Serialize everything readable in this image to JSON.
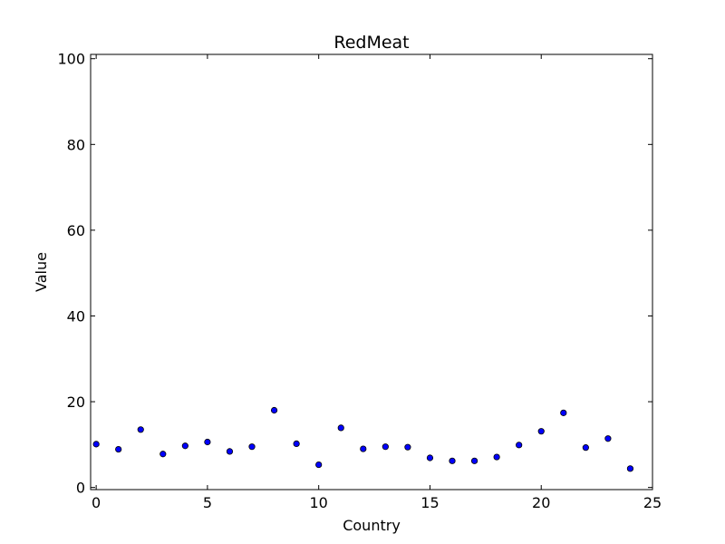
{
  "chart_data": {
    "type": "scatter",
    "title": "RedMeat",
    "xlabel": "Country",
    "ylabel": "Value",
    "xlim": [
      -0.25,
      25
    ],
    "ylim": [
      -0.5,
      101
    ],
    "xticks": [
      "0",
      "5",
      "10",
      "15",
      "20",
      "25"
    ],
    "yticks": [
      "0",
      "20",
      "40",
      "60",
      "80",
      "100"
    ],
    "grid": false,
    "marker_color": "#0000ff",
    "marker_edge_color": "#000000",
    "series": [
      {
        "x": [
          0,
          1,
          2,
          3,
          4,
          5,
          6,
          7,
          8,
          9,
          10,
          11,
          12,
          13,
          14,
          15,
          16,
          17,
          18,
          19,
          20,
          21,
          22,
          23,
          24
        ],
        "y": [
          10.1,
          8.9,
          13.5,
          7.8,
          9.7,
          10.6,
          8.4,
          9.5,
          18.0,
          10.2,
          5.3,
          13.9,
          9.0,
          9.5,
          9.4,
          6.9,
          6.2,
          6.2,
          7.1,
          9.9,
          13.1,
          17.4,
          9.3,
          11.4,
          4.4
        ]
      }
    ]
  }
}
